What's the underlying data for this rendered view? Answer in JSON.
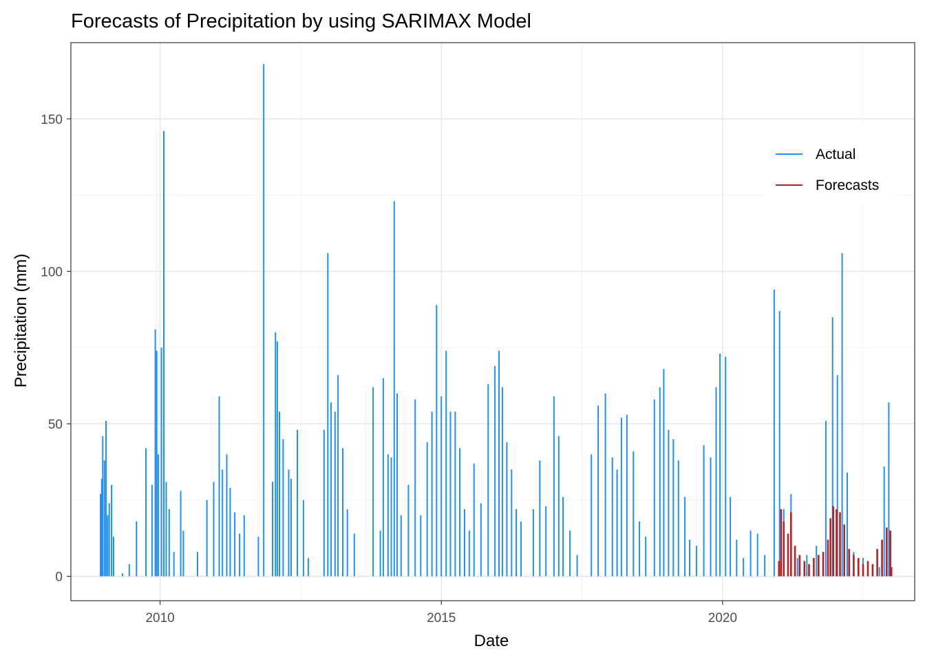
{
  "chart_data": {
    "type": "line",
    "title": "Forecasts of Precipitation by using SARIMAX Model",
    "xlabel": "Date",
    "ylabel": "Precipitation (mm)",
    "xlim": [
      "2008-06-01",
      "2023-06-01"
    ],
    "ylim": [
      -8,
      175
    ],
    "grid": true,
    "legend_position": "top-right",
    "x_ticks": [
      {
        "date": "2010-01-01",
        "label": "2010"
      },
      {
        "date": "2015-01-01",
        "label": "2015"
      },
      {
        "date": "2020-01-01",
        "label": "2020"
      }
    ],
    "y_ticks": [
      {
        "value": 0,
        "label": "0"
      },
      {
        "value": 50,
        "label": "50"
      },
      {
        "value": 100,
        "label": "100"
      },
      {
        "value": 150,
        "label": "150"
      }
    ],
    "series": [
      {
        "name": "Actual",
        "color": "#1E90FF",
        "points": [
          [
            "2008-12-05",
            0
          ],
          [
            "2008-12-10",
            27
          ],
          [
            "2008-12-18",
            32
          ],
          [
            "2008-12-25",
            46
          ],
          [
            "2009-01-05",
            38
          ],
          [
            "2009-01-15",
            51
          ],
          [
            "2009-01-25",
            20
          ],
          [
            "2009-02-05",
            24
          ],
          [
            "2009-02-20",
            30
          ],
          [
            "2009-03-05",
            13
          ],
          [
            "2009-04-01",
            0
          ],
          [
            "2009-05-01",
            1
          ],
          [
            "2009-06-15",
            4
          ],
          [
            "2009-08-01",
            18
          ],
          [
            "2009-10-01",
            42
          ],
          [
            "2009-11-10",
            30
          ],
          [
            "2009-12-01",
            81
          ],
          [
            "2009-12-10",
            74
          ],
          [
            "2009-12-20",
            40
          ],
          [
            "2010-01-10",
            75
          ],
          [
            "2010-01-25",
            146
          ],
          [
            "2010-02-10",
            31
          ],
          [
            "2010-03-01",
            22
          ],
          [
            "2010-04-01",
            8
          ],
          [
            "2010-05-15",
            28
          ],
          [
            "2010-06-01",
            15
          ],
          [
            "2010-07-01",
            0
          ],
          [
            "2010-09-01",
            8
          ],
          [
            "2010-11-01",
            25
          ],
          [
            "2010-12-15",
            31
          ],
          [
            "2011-01-20",
            59
          ],
          [
            "2011-02-10",
            35
          ],
          [
            "2011-03-10",
            40
          ],
          [
            "2011-04-01",
            29
          ],
          [
            "2011-05-01",
            21
          ],
          [
            "2011-06-01",
            14
          ],
          [
            "2011-07-01",
            20
          ],
          [
            "2011-08-15",
            0
          ],
          [
            "2011-10-01",
            13
          ],
          [
            "2011-11-05",
            168
          ],
          [
            "2011-11-15",
            0
          ],
          [
            "2012-01-01",
            31
          ],
          [
            "2012-01-20",
            80
          ],
          [
            "2012-02-01",
            77
          ],
          [
            "2012-02-15",
            54
          ],
          [
            "2012-03-10",
            45
          ],
          [
            "2012-04-15",
            35
          ],
          [
            "2012-05-01",
            32
          ],
          [
            "2012-06-10",
            48
          ],
          [
            "2012-07-20",
            25
          ],
          [
            "2012-08-20",
            6
          ],
          [
            "2012-09-20",
            0
          ],
          [
            "2012-11-01",
            0
          ],
          [
            "2012-12-01",
            48
          ],
          [
            "2012-12-25",
            106
          ],
          [
            "2013-01-15",
            57
          ],
          [
            "2013-02-10",
            54
          ],
          [
            "2013-03-01",
            66
          ],
          [
            "2013-04-01",
            42
          ],
          [
            "2013-05-01",
            22
          ],
          [
            "2013-06-15",
            14
          ],
          [
            "2013-08-01",
            0
          ],
          [
            "2013-10-15",
            62
          ],
          [
            "2013-11-15",
            0
          ],
          [
            "2013-12-01",
            15
          ],
          [
            "2013-12-20",
            65
          ],
          [
            "2014-01-20",
            40
          ],
          [
            "2014-02-10",
            39
          ],
          [
            "2014-03-01",
            123
          ],
          [
            "2014-03-20",
            60
          ],
          [
            "2014-04-15",
            20
          ],
          [
            "2014-06-01",
            30
          ],
          [
            "2014-07-15",
            58
          ],
          [
            "2014-08-20",
            20
          ],
          [
            "2014-10-01",
            44
          ],
          [
            "2014-11-01",
            54
          ],
          [
            "2014-12-01",
            89
          ],
          [
            "2015-01-01",
            59
          ],
          [
            "2015-02-01",
            74
          ],
          [
            "2015-03-01",
            54
          ],
          [
            "2015-04-01",
            54
          ],
          [
            "2015-05-01",
            42
          ],
          [
            "2015-06-01",
            22
          ],
          [
            "2015-07-01",
            15
          ],
          [
            "2015-08-01",
            37
          ],
          [
            "2015-09-15",
            24
          ],
          [
            "2015-11-01",
            63
          ],
          [
            "2015-12-15",
            69
          ],
          [
            "2016-01-10",
            74
          ],
          [
            "2016-02-01",
            62
          ],
          [
            "2016-03-01",
            44
          ],
          [
            "2016-04-01",
            35
          ],
          [
            "2016-05-01",
            22
          ],
          [
            "2016-06-01",
            18
          ],
          [
            "2016-07-01",
            0
          ],
          [
            "2016-08-20",
            22
          ],
          [
            "2016-10-01",
            38
          ],
          [
            "2016-11-10",
            23
          ],
          [
            "2017-01-01",
            59
          ],
          [
            "2017-02-01",
            46
          ],
          [
            "2017-03-01",
            26
          ],
          [
            "2017-04-15",
            15
          ],
          [
            "2017-06-01",
            7
          ],
          [
            "2017-07-15",
            0
          ],
          [
            "2017-09-01",
            40
          ],
          [
            "2017-10-15",
            56
          ],
          [
            "2017-12-01",
            60
          ],
          [
            "2018-01-15",
            39
          ],
          [
            "2018-02-15",
            35
          ],
          [
            "2018-03-15",
            52
          ],
          [
            "2018-04-20",
            53
          ],
          [
            "2018-06-01",
            41
          ],
          [
            "2018-07-10",
            18
          ],
          [
            "2018-08-20",
            13
          ],
          [
            "2018-10-15",
            58
          ],
          [
            "2018-11-20",
            62
          ],
          [
            "2018-12-15",
            68
          ],
          [
            "2019-01-15",
            48
          ],
          [
            "2019-02-15",
            45
          ],
          [
            "2019-03-20",
            38
          ],
          [
            "2019-05-01",
            26
          ],
          [
            "2019-06-01",
            12
          ],
          [
            "2019-07-15",
            10
          ],
          [
            "2019-09-01",
            43
          ],
          [
            "2019-10-15",
            39
          ],
          [
            "2019-11-20",
            62
          ],
          [
            "2019-12-15",
            73
          ],
          [
            "2020-01-20",
            72
          ],
          [
            "2020-02-20",
            26
          ],
          [
            "2020-04-01",
            12
          ],
          [
            "2020-05-15",
            6
          ],
          [
            "2020-07-01",
            15
          ],
          [
            "2020-08-15",
            14
          ],
          [
            "2020-10-01",
            7
          ],
          [
            "2020-12-01",
            94
          ],
          [
            "2021-01-05",
            87
          ],
          [
            "2021-02-01",
            22
          ],
          [
            "2021-03-20",
            27
          ],
          [
            "2021-05-01",
            6
          ],
          [
            "2021-07-01",
            7
          ],
          [
            "2021-09-01",
            10
          ],
          [
            "2021-11-01",
            51
          ],
          [
            "2021-12-15",
            85
          ],
          [
            "2022-01-15",
            66
          ],
          [
            "2022-02-15",
            106
          ],
          [
            "2022-03-20",
            34
          ],
          [
            "2022-05-01",
            8
          ],
          [
            "2022-07-01",
            6
          ],
          [
            "2022-09-01",
            1
          ],
          [
            "2022-10-15",
            3
          ],
          [
            "2022-11-15",
            36
          ],
          [
            "2022-12-15",
            57
          ],
          [
            "2023-01-01",
            0
          ]
        ]
      },
      {
        "name": "Forecasts",
        "color": "#B22222",
        "points": [
          [
            "2021-01-01",
            5
          ],
          [
            "2021-01-15",
            22
          ],
          [
            "2021-02-01",
            18
          ],
          [
            "2021-03-01",
            14
          ],
          [
            "2021-03-20",
            21
          ],
          [
            "2021-04-15",
            10
          ],
          [
            "2021-05-15",
            7
          ],
          [
            "2021-06-15",
            5
          ],
          [
            "2021-07-15",
            4
          ],
          [
            "2021-08-15",
            6
          ],
          [
            "2021-09-15",
            7
          ],
          [
            "2021-10-15",
            8
          ],
          [
            "2021-11-15",
            12
          ],
          [
            "2021-12-01",
            19
          ],
          [
            "2021-12-20",
            23
          ],
          [
            "2022-01-10",
            22
          ],
          [
            "2022-02-01",
            21
          ],
          [
            "2022-03-01",
            17
          ],
          [
            "2022-04-01",
            9
          ],
          [
            "2022-05-01",
            7
          ],
          [
            "2022-06-01",
            6
          ],
          [
            "2022-07-01",
            4
          ],
          [
            "2022-08-01",
            5
          ],
          [
            "2022-09-01",
            4
          ],
          [
            "2022-10-01",
            9
          ],
          [
            "2022-11-01",
            12
          ],
          [
            "2022-12-01",
            16
          ],
          [
            "2022-12-25",
            15
          ],
          [
            "2023-01-01",
            3
          ]
        ]
      }
    ]
  }
}
